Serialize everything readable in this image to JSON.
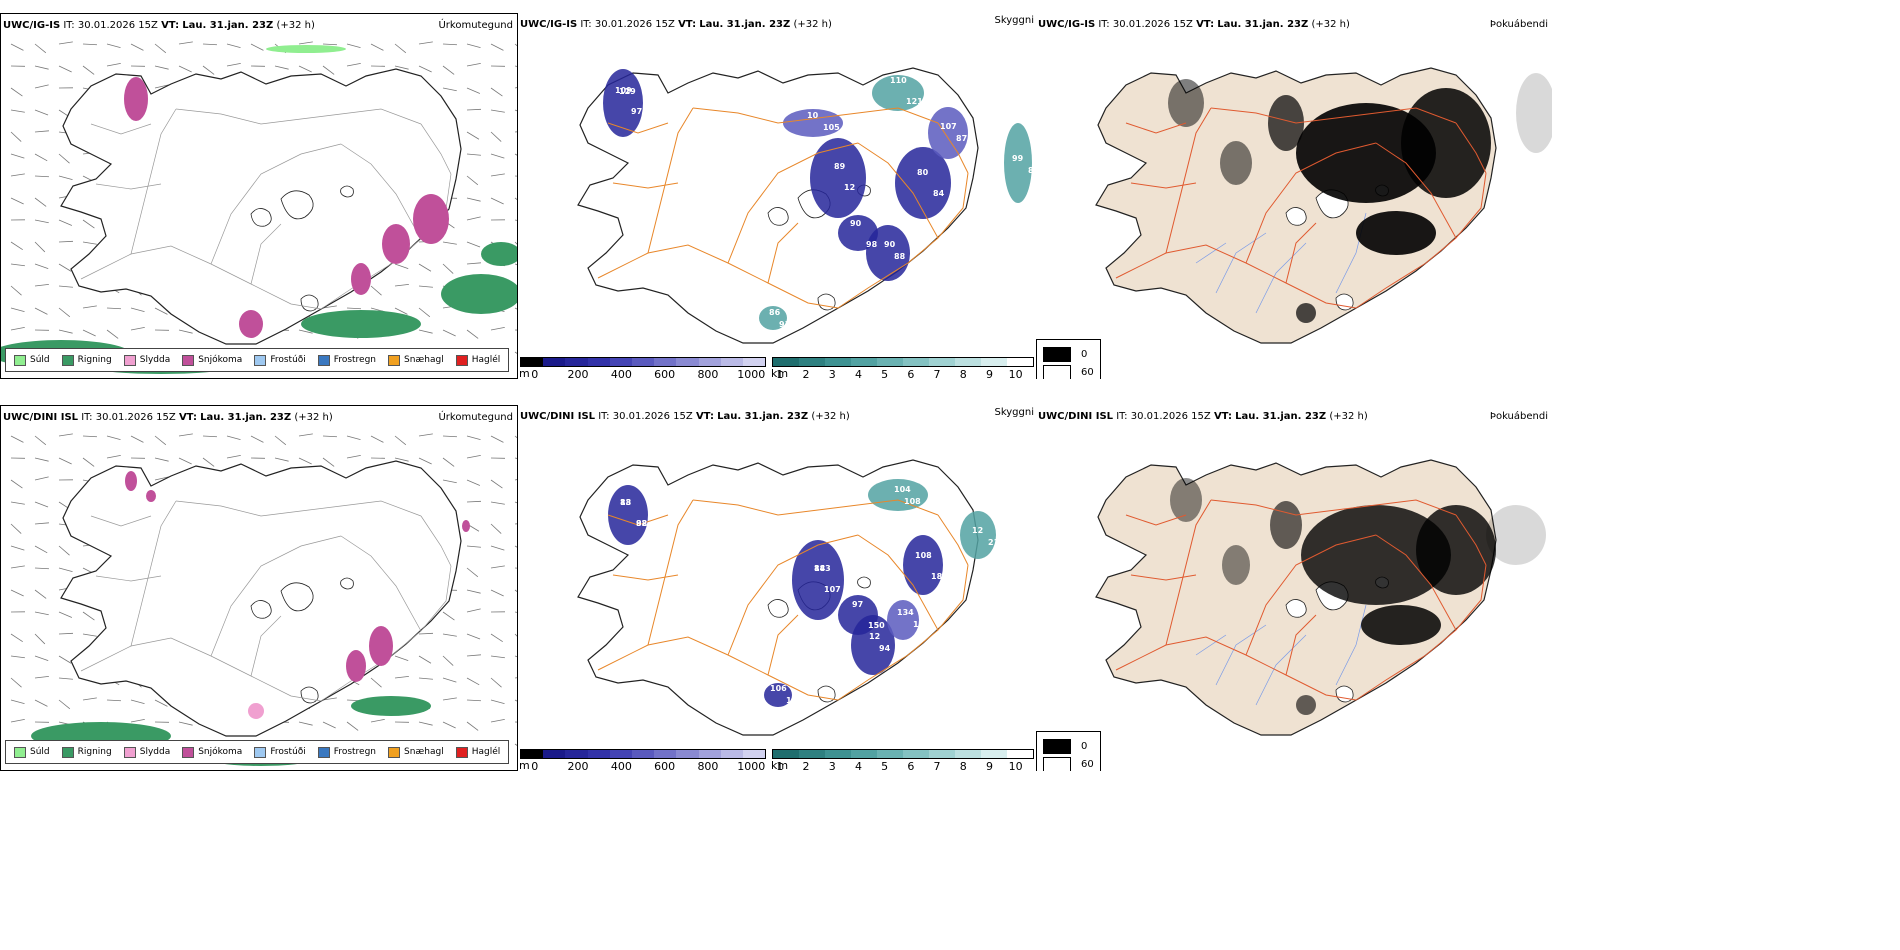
{
  "rows": [
    {
      "model": "UWC/IG-IS",
      "it_label": "IT:",
      "it_value": "30.01.2026 15Z",
      "vt_label": "VT:",
      "vt_value": "Lau. 31.jan. 23Z",
      "lead": "(+32 h)"
    },
    {
      "model": "UWC/DINI ISL",
      "it_label": "IT:",
      "it_value": "30.01.2026 15Z",
      "vt_label": "VT:",
      "vt_value": "Lau. 31.jan. 23Z",
      "lead": "(+32 h)"
    }
  ],
  "panel_titles": {
    "precip": "Úrkomutegund",
    "visibility": "Skyggni",
    "fog": "Þokuábendi"
  },
  "precip_legend": [
    {
      "label": "Súld",
      "color": "#90ee90"
    },
    {
      "label": "Rigning",
      "color": "#3a9a64"
    },
    {
      "label": "Slydda",
      "color": "#f0a0d0"
    },
    {
      "label": "Snjókoma",
      "color": "#c0509a"
    },
    {
      "label": "Frostúði",
      "color": "#9ec8f0"
    },
    {
      "label": "Frostregn",
      "color": "#3a78c0"
    },
    {
      "label": "Snæhagl",
      "color": "#f0a020"
    },
    {
      "label": "Haglél",
      "color": "#e02020"
    }
  ],
  "cbar_m": {
    "unit": "m",
    "ticks": [
      "0",
      "200",
      "400",
      "600",
      "800",
      "1000"
    ],
    "colors": [
      "#000000",
      "#1a1a8a",
      "#26269a",
      "#3232a8",
      "#4444b4",
      "#5a5abe",
      "#7272c8",
      "#8a8ad2",
      "#a2a2dc",
      "#babae6",
      "#d2d2f0"
    ]
  },
  "cbar_km": {
    "unit": "km",
    "ticks": [
      "1",
      "2",
      "3",
      "4",
      "5",
      "6",
      "7",
      "8",
      "9",
      "10"
    ],
    "colors": [
      "#1f6e6e",
      "#2e8080",
      "#3e9292",
      "#52a2a2",
      "#6ab2b2",
      "#84c2c2",
      "#a0d2d2",
      "#bce0e0",
      "#d8eeee",
      "#ffffff"
    ]
  },
  "fog_legend": [
    {
      "label": "0",
      "color": "#000000"
    },
    {
      "label": "60",
      "color": "#ffffff"
    }
  ],
  "vis_labels_top": [
    "109",
    "97",
    "89",
    "12",
    "80",
    "84",
    "90",
    "98",
    "90",
    "88",
    "10",
    "105",
    "107",
    "87",
    "86",
    "93",
    "99",
    "84",
    "110",
    "121",
    "129"
  ],
  "vis_labels_bottom": [
    "13",
    "98",
    "88",
    "107",
    "97",
    "150",
    "108",
    "180",
    "12",
    "94",
    "134",
    "129",
    "106",
    "121",
    "104",
    "108",
    "12",
    "218",
    "88",
    "82",
    "143"
  ],
  "colors": {
    "coast": "#222222",
    "roads_vis": "#e8872a",
    "roads_fog": "#e05a30",
    "land_fog": "#efe2d2",
    "rivers": "#7a9ae8",
    "wind": "#777777"
  }
}
